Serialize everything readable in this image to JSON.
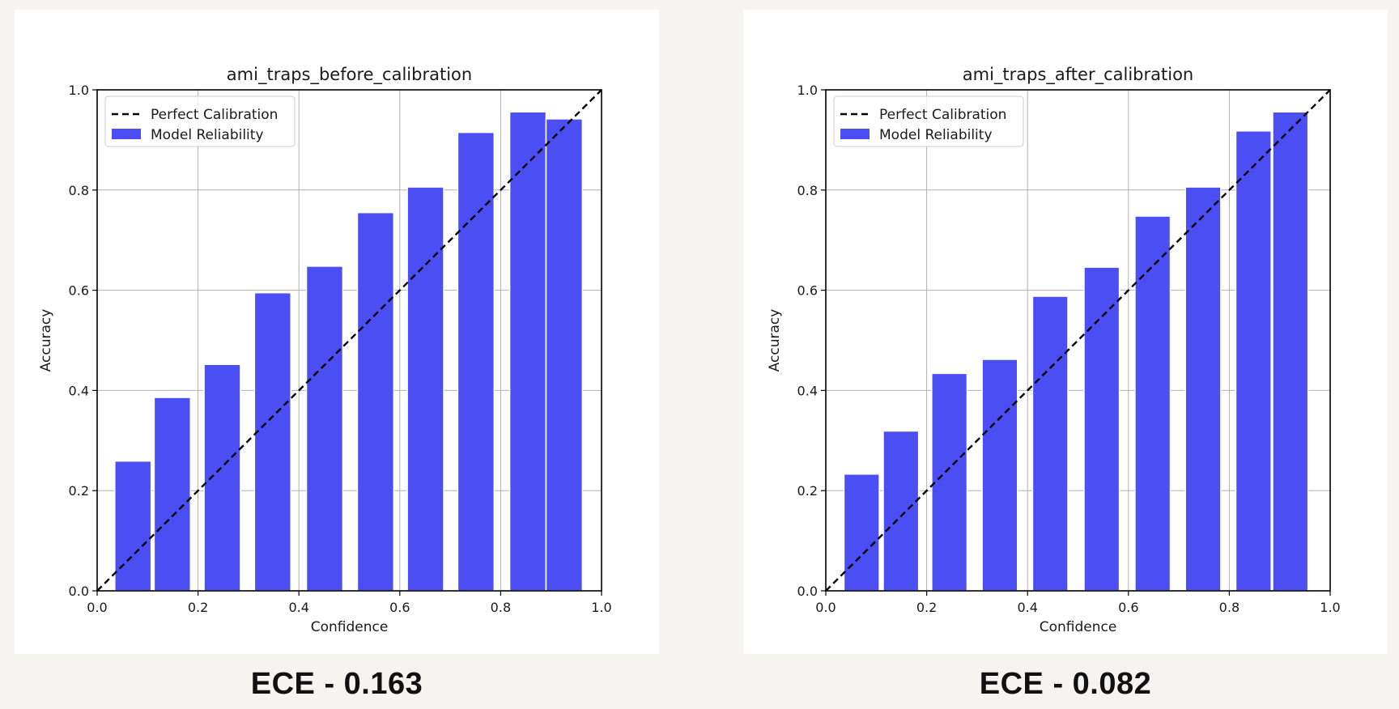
{
  "chart_data": [
    {
      "type": "bar",
      "title": "ami_traps_before_calibration",
      "xlabel": "Confidence",
      "ylabel": "Accuracy",
      "xlim": [
        0,
        1
      ],
      "ylim": [
        0,
        1
      ],
      "x_ticks": [
        "0.0",
        "0.2",
        "0.4",
        "0.6",
        "0.8",
        "1.0"
      ],
      "y_ticks": [
        "0.0",
        "0.2",
        "0.4",
        "0.6",
        "0.8",
        "1.0"
      ],
      "grid": true,
      "legend_position": "top-left",
      "legend": [
        "Perfect Calibration",
        "Model Reliability"
      ],
      "bar_color": "#4b4ef3",
      "bins": [
        {
          "x": 0.071,
          "accuracy": 0.259
        },
        {
          "x": 0.149,
          "accuracy": 0.386
        },
        {
          "x": 0.248,
          "accuracy": 0.452
        },
        {
          "x": 0.348,
          "accuracy": 0.595
        },
        {
          "x": 0.451,
          "accuracy": 0.648
        },
        {
          "x": 0.552,
          "accuracy": 0.755
        },
        {
          "x": 0.651,
          "accuracy": 0.806
        },
        {
          "x": 0.751,
          "accuracy": 0.915
        },
        {
          "x": 0.854,
          "accuracy": 0.956
        },
        {
          "x": 0.926,
          "accuracy": 0.942
        }
      ],
      "bin_width": 0.072
    },
    {
      "type": "bar",
      "title": "ami_traps_after_calibration",
      "xlabel": "Confidence",
      "ylabel": "Accuracy",
      "xlim": [
        0,
        1
      ],
      "ylim": [
        0,
        1
      ],
      "x_ticks": [
        "0.0",
        "0.2",
        "0.4",
        "0.6",
        "0.8",
        "1.0"
      ],
      "y_ticks": [
        "0.0",
        "0.2",
        "0.4",
        "0.6",
        "0.8",
        "1.0"
      ],
      "grid": true,
      "legend_position": "top-left",
      "legend": [
        "Perfect Calibration",
        "Model Reliability"
      ],
      "bar_color": "#4b4ef3",
      "bins": [
        {
          "x": 0.071,
          "accuracy": 0.233
        },
        {
          "x": 0.149,
          "accuracy": 0.319
        },
        {
          "x": 0.245,
          "accuracy": 0.434
        },
        {
          "x": 0.345,
          "accuracy": 0.462
        },
        {
          "x": 0.445,
          "accuracy": 0.588
        },
        {
          "x": 0.547,
          "accuracy": 0.646
        },
        {
          "x": 0.648,
          "accuracy": 0.748
        },
        {
          "x": 0.748,
          "accuracy": 0.806
        },
        {
          "x": 0.848,
          "accuracy": 0.918
        },
        {
          "x": 0.921,
          "accuracy": 0.956
        }
      ],
      "bin_width": 0.07
    }
  ],
  "captions": {
    "left": "ECE - 0.163",
    "right": "ECE - 0.082"
  }
}
